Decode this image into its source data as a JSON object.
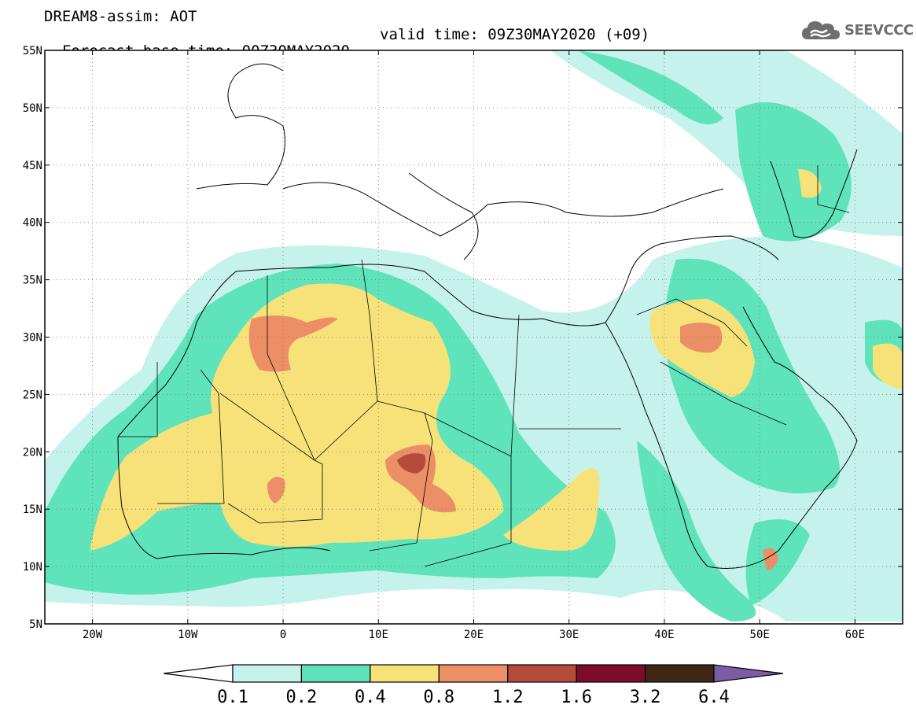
{
  "title": {
    "line1": "DREAM8-assim: AOT",
    "base": "Forecast base time: 00Z30MAY2020",
    "valid": "valid time: 09Z30MAY2020 (+09)"
  },
  "logo": {
    "text": "SEEVCCC",
    "icon": "cloud-icon"
  },
  "map": {
    "lon_range": [
      -25,
      65
    ],
    "lat_range": [
      5,
      55
    ],
    "lat_ticks": [
      {
        "value": 55,
        "label": "55N"
      },
      {
        "value": 50,
        "label": "50N"
      },
      {
        "value": 45,
        "label": "45N"
      },
      {
        "value": 40,
        "label": "40N"
      },
      {
        "value": 35,
        "label": "35N"
      },
      {
        "value": 30,
        "label": "30N"
      },
      {
        "value": 25,
        "label": "25N"
      },
      {
        "value": 20,
        "label": "20N"
      },
      {
        "value": 15,
        "label": "15N"
      },
      {
        "value": 10,
        "label": "10N"
      },
      {
        "value": 5,
        "label": "5N"
      }
    ],
    "lon_ticks": [
      {
        "value": -20,
        "label": "20W"
      },
      {
        "value": -10,
        "label": "10W"
      },
      {
        "value": 0,
        "label": "0"
      },
      {
        "value": 10,
        "label": "10E"
      },
      {
        "value": 20,
        "label": "20E"
      },
      {
        "value": 30,
        "label": "30E"
      },
      {
        "value": 40,
        "label": "40E"
      },
      {
        "value": 50,
        "label": "50E"
      },
      {
        "value": 60,
        "label": "60E"
      }
    ],
    "grid": true
  },
  "colorbar": {
    "colors": [
      "#ffffff",
      "#c6f2ec",
      "#5fe3bb",
      "#f7e27a",
      "#ec8f66",
      "#b54b3b",
      "#7d0b2a",
      "#3f2615",
      "#7d5ca6"
    ],
    "labels": [
      "0.1",
      "0.2",
      "0.4",
      "0.8",
      "1.2",
      "1.6",
      "3.2",
      "6.4"
    ]
  }
}
